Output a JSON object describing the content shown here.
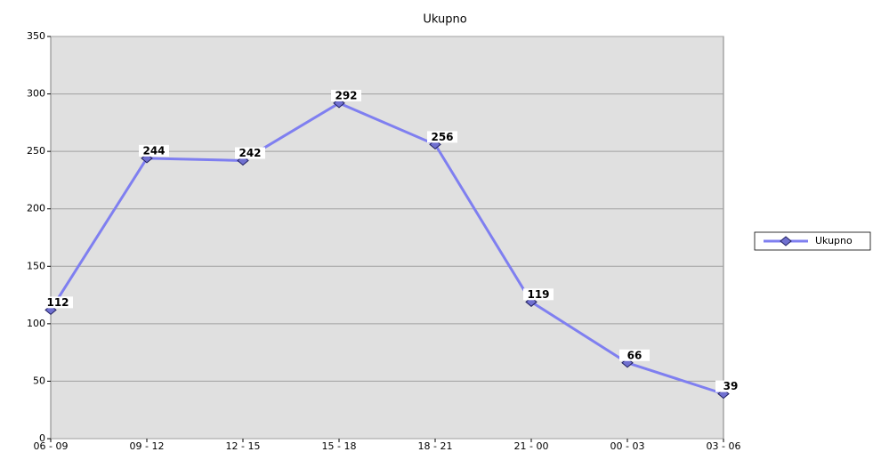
{
  "chart_data": {
    "type": "line",
    "title": "Ukupno",
    "categories": [
      "06 - 09",
      "09 - 12",
      "12 - 15",
      "15 - 18",
      "18 - 21",
      "21 - 00",
      "00 - 03",
      "03 - 06"
    ],
    "series": [
      {
        "name": "Ukupno",
        "color": "#7f7ff0",
        "values": [
          112,
          244,
          242,
          292,
          256,
          119,
          66,
          39
        ]
      }
    ],
    "ylim": [
      0,
      350
    ],
    "yticks": [
      0,
      50,
      100,
      150,
      200,
      250,
      300,
      350
    ],
    "grid": true,
    "legend": "right"
  }
}
